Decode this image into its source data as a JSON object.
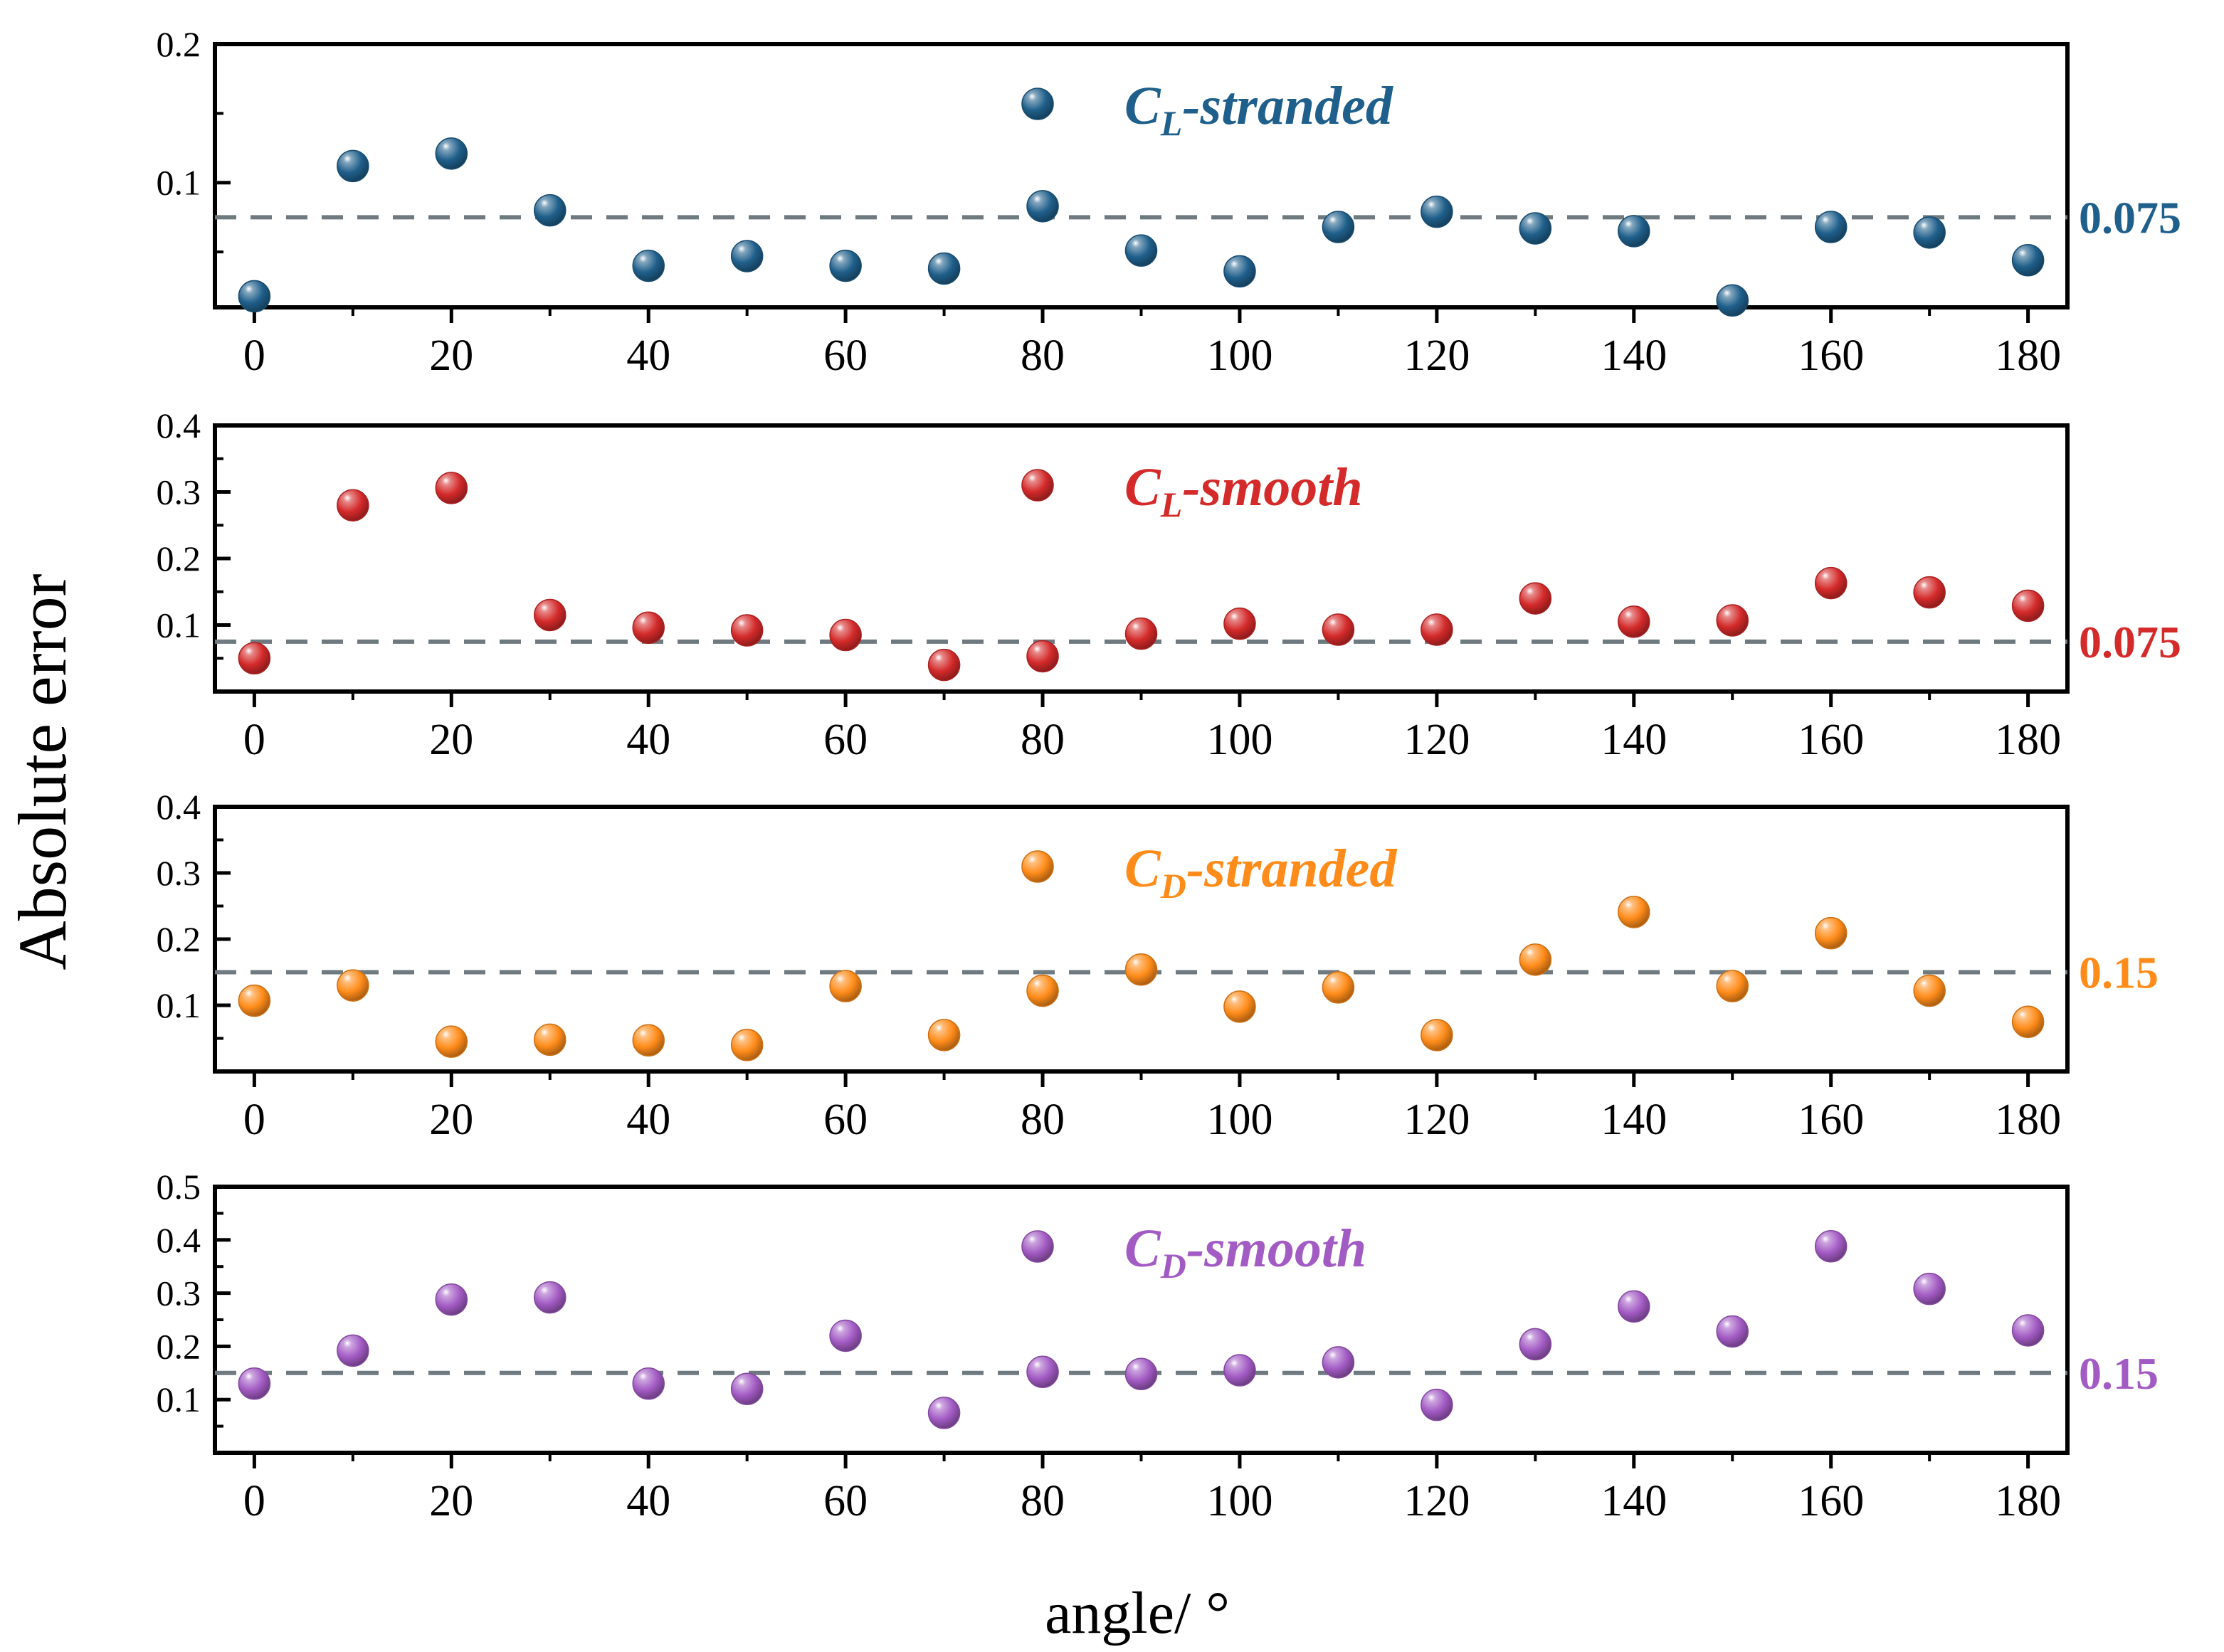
{
  "chart_data": [
    {
      "type": "scatter",
      "series_name": "C_L-stranded",
      "legend": {
        "main": "C",
        "sub": "L",
        "suffix": "-stranded"
      },
      "color": "#1f5f8b",
      "x": [
        0,
        10,
        20,
        30,
        40,
        50,
        60,
        70,
        80,
        90,
        100,
        110,
        120,
        130,
        140,
        150,
        160,
        170,
        180
      ],
      "y": [
        0.018,
        0.112,
        0.121,
        0.08,
        0.04,
        0.047,
        0.04,
        0.038,
        0.083,
        0.051,
        0.036,
        0.068,
        0.079,
        0.067,
        0.065,
        0.015,
        0.068,
        0.064,
        0.044
      ],
      "ylim": [
        0.01,
        0.2
      ],
      "yticks": [
        0.1,
        0.2
      ],
      "ytick_labels": [
        "0.1",
        "0.2"
      ],
      "reference_line": 0.075,
      "reference_label": "0.075"
    },
    {
      "type": "scatter",
      "series_name": "C_L-smooth",
      "legend": {
        "main": "C",
        "sub": "L",
        "suffix": "-smooth"
      },
      "color": "#d42a2a",
      "x": [
        0,
        10,
        20,
        30,
        40,
        50,
        60,
        70,
        80,
        90,
        100,
        110,
        120,
        130,
        140,
        150,
        160,
        170,
        180
      ],
      "y": [
        0.05,
        0.28,
        0.306,
        0.115,
        0.096,
        0.092,
        0.085,
        0.04,
        0.053,
        0.087,
        0.102,
        0.093,
        0.093,
        0.14,
        0.105,
        0.107,
        0.163,
        0.149,
        0.129
      ],
      "ylim": [
        0.0,
        0.4
      ],
      "yticks": [
        0.1,
        0.2,
        0.3,
        0.4
      ],
      "ytick_labels": [
        "0.1",
        "0.2",
        "0.3",
        "0.4"
      ],
      "reference_line": 0.075,
      "reference_label": "0.075"
    },
    {
      "type": "scatter",
      "series_name": "C_D-stranded",
      "legend": {
        "main": "C",
        "sub": "D",
        "suffix": "-stranded"
      },
      "color": "#ff8c1a",
      "x": [
        0,
        10,
        20,
        30,
        40,
        50,
        60,
        70,
        80,
        90,
        100,
        110,
        120,
        130,
        140,
        150,
        160,
        170,
        180
      ],
      "y": [
        0.107,
        0.13,
        0.045,
        0.048,
        0.047,
        0.04,
        0.129,
        0.055,
        0.122,
        0.154,
        0.098,
        0.127,
        0.055,
        0.169,
        0.241,
        0.129,
        0.209,
        0.122,
        0.075
      ],
      "ylim": [
        0.0,
        0.4
      ],
      "yticks": [
        0.1,
        0.2,
        0.3,
        0.4
      ],
      "ytick_labels": [
        "0.1",
        "0.2",
        "0.3",
        "0.4"
      ],
      "reference_line": 0.15,
      "reference_label": "0.15"
    },
    {
      "type": "scatter",
      "series_name": "C_D-smooth",
      "legend": {
        "main": "C",
        "sub": "D",
        "suffix": "-smooth"
      },
      "color": "#a35bc4",
      "x": [
        0,
        10,
        20,
        30,
        40,
        50,
        60,
        70,
        80,
        90,
        100,
        110,
        120,
        130,
        140,
        150,
        160,
        170,
        180
      ],
      "y": [
        0.13,
        0.192,
        0.288,
        0.292,
        0.13,
        0.12,
        0.22,
        0.075,
        0.152,
        0.148,
        0.155,
        0.17,
        0.09,
        0.204,
        0.275,
        0.228,
        0.388,
        0.308,
        0.23
      ],
      "ylim": [
        0.0,
        0.5
      ],
      "yticks": [
        0.1,
        0.2,
        0.3,
        0.4,
        0.5
      ],
      "ytick_labels": [
        "0.1",
        "0.2",
        "0.3",
        "0.4",
        "0.5"
      ],
      "reference_line": 0.15,
      "reference_label": "0.15"
    }
  ],
  "xlim": [
    -4,
    184
  ],
  "xticks": [
    0,
    20,
    40,
    60,
    80,
    100,
    120,
    140,
    160,
    180
  ],
  "xtick_labels": [
    "0",
    "20",
    "40",
    "60",
    "80",
    "100",
    "120",
    "140",
    "160",
    "180"
  ],
  "xlabel": "angle/ °",
  "ylabel": "Absolute error"
}
